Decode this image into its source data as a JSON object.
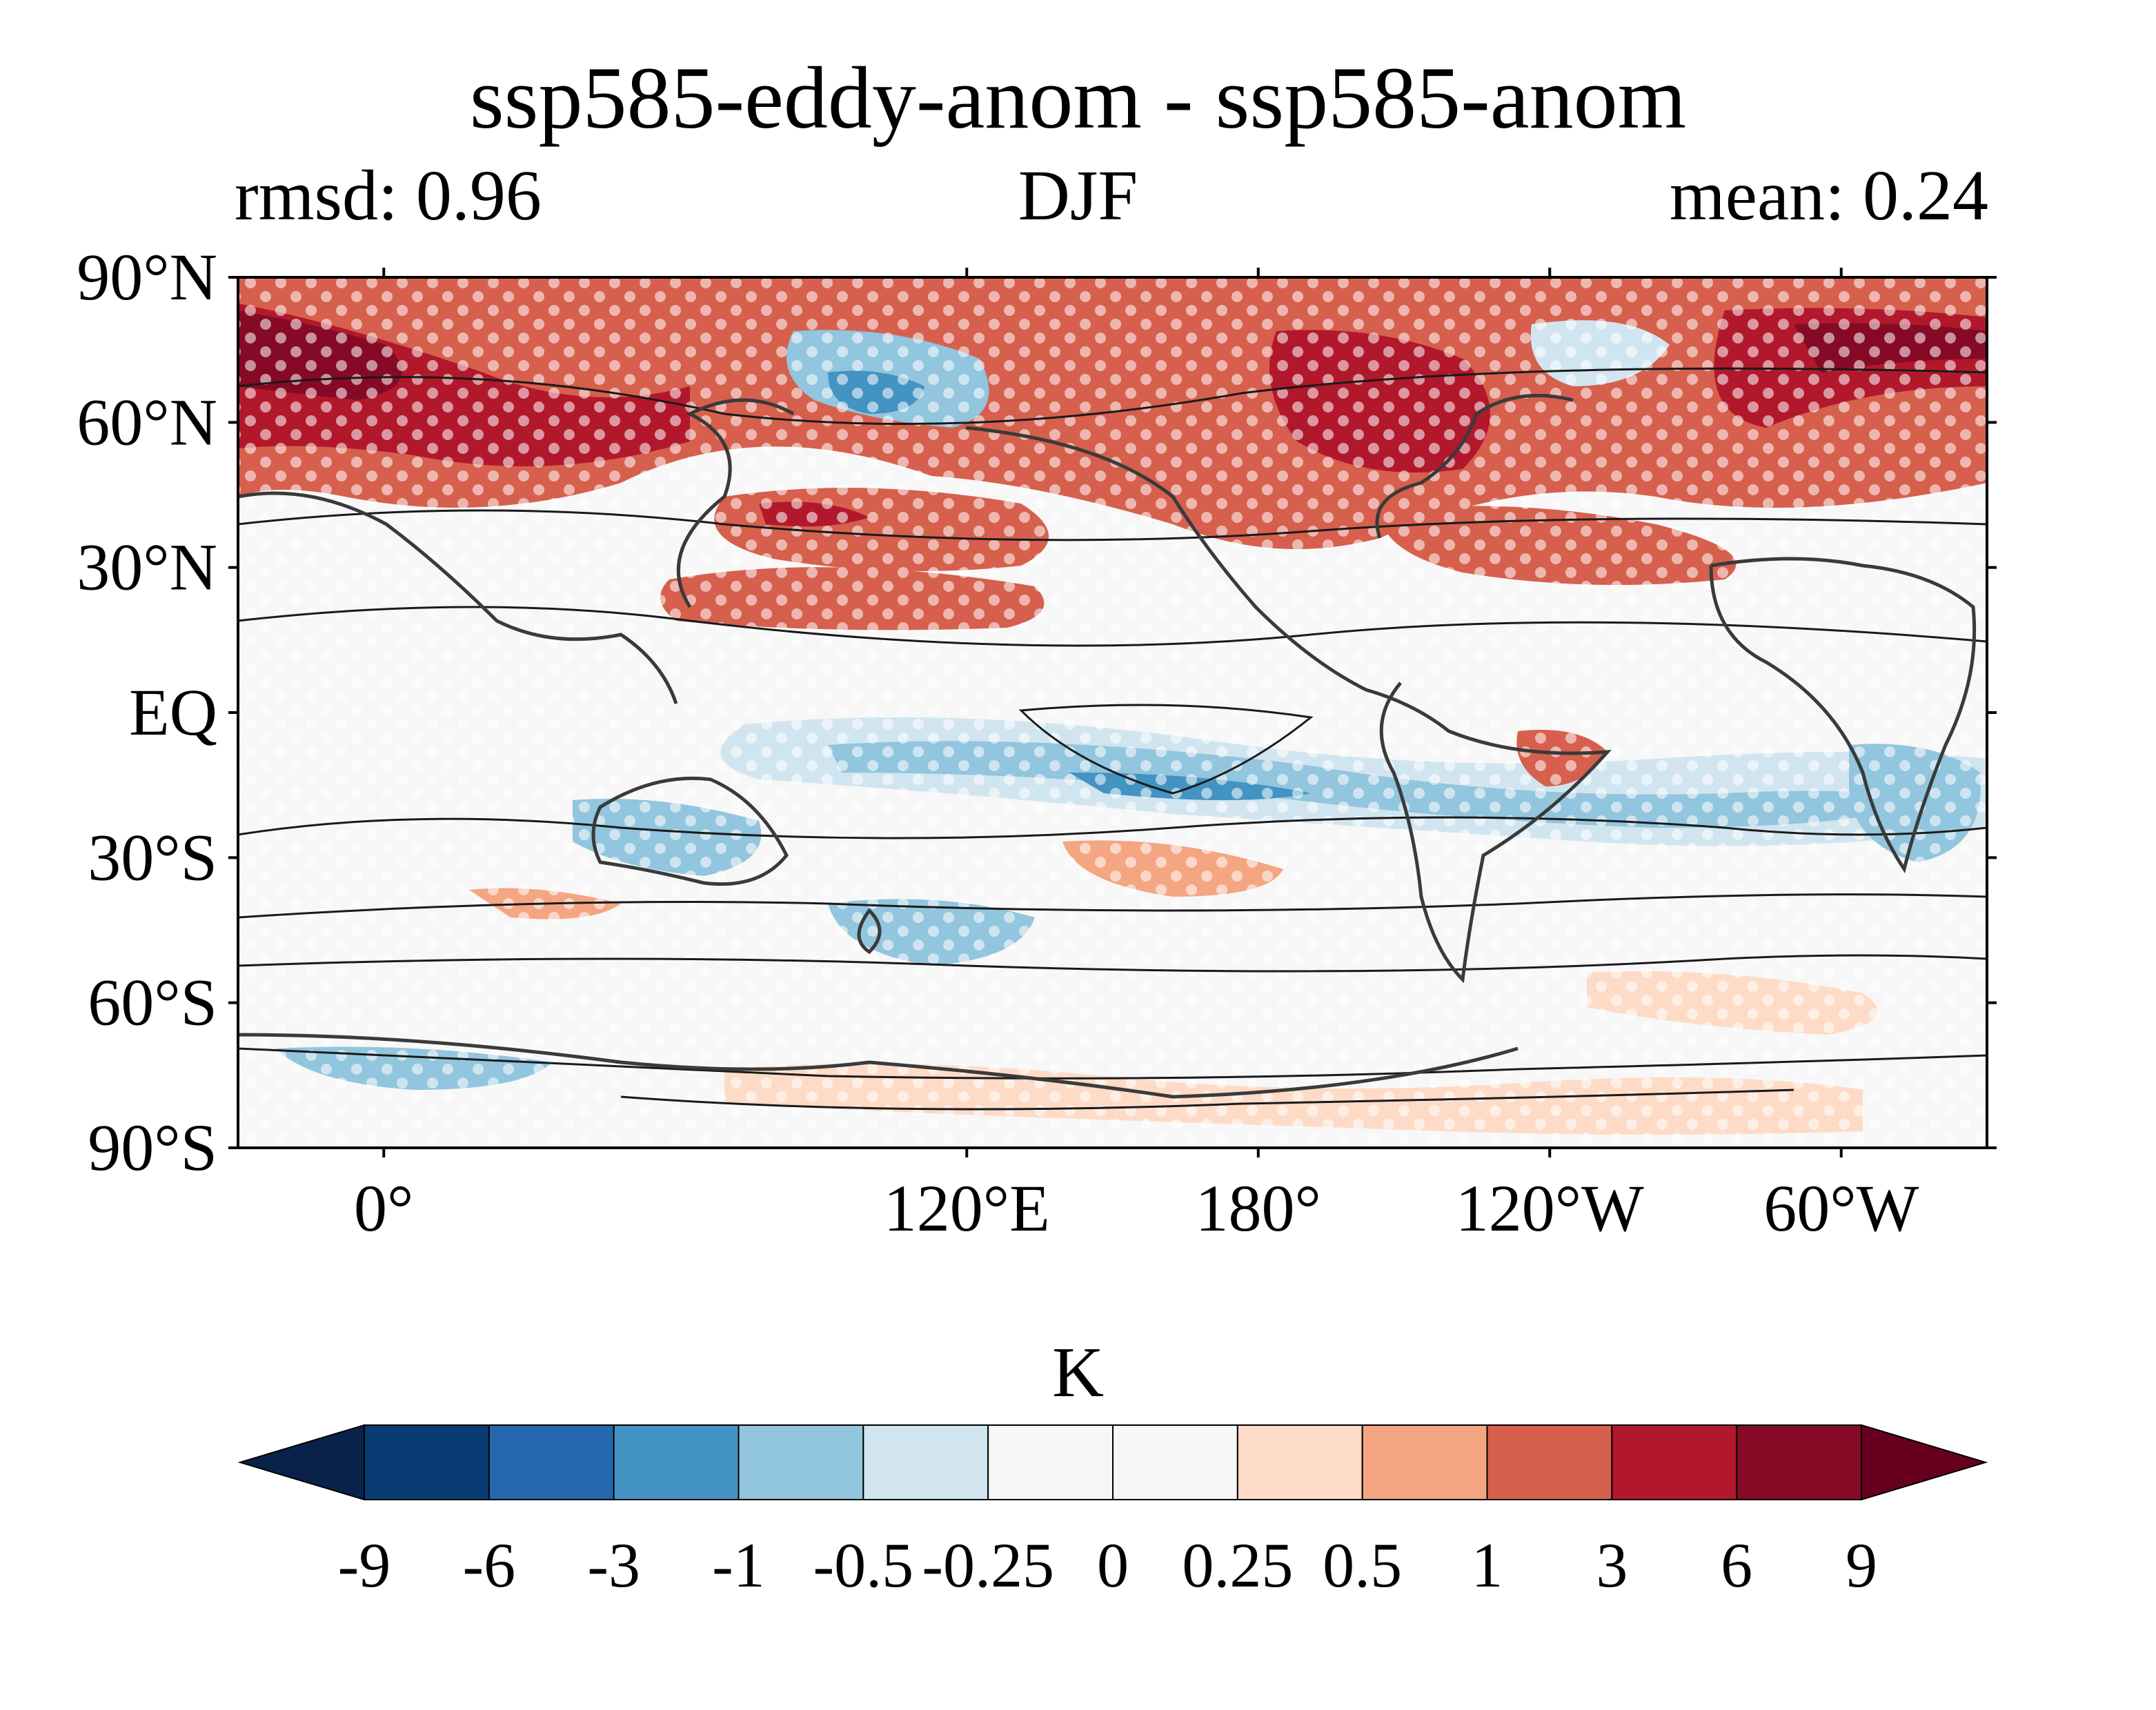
{
  "title": "ssp585-eddy-anom - ssp585-anom",
  "subtitle_left": "rmsd: 0.96",
  "subtitle_center": "DJF",
  "subtitle_right": "mean: 0.24",
  "map": {
    "projection": "PlateCarree",
    "central_longitude": 150,
    "lon_extent": [
      0,
      360
    ],
    "lat_extent": [
      -90,
      90
    ],
    "lat_ticks": [
      {
        "value": 90,
        "label": "90°N"
      },
      {
        "value": 60,
        "label": "60°N"
      },
      {
        "value": 30,
        "label": "30°N"
      },
      {
        "value": 0,
        "label": "EQ"
      },
      {
        "value": -30,
        "label": "30°S"
      },
      {
        "value": -60,
        "label": "60°S"
      },
      {
        "value": -90,
        "label": "90°S"
      }
    ],
    "lon_ticks": [
      {
        "value": 120,
        "label": "120°E"
      },
      {
        "value": 180,
        "label": "180°"
      },
      {
        "value": 240,
        "label": "120°W"
      },
      {
        "value": 300,
        "label": "60°W"
      },
      {
        "value": 360,
        "label": "0°"
      }
    ],
    "stippling": "significance dots (white)",
    "contour_overlay": "black climatology contours and coastlines"
  },
  "colorbar": {
    "label": "K",
    "levels": [
      "-9",
      "-6",
      "-3",
      "-1",
      "-0.5",
      "-0.25",
      "0",
      "0.25",
      "0.5",
      "1",
      "3",
      "6",
      "9"
    ],
    "colors": [
      "#08224a",
      "#0a3a72",
      "#2468ae",
      "#4393c3",
      "#92c5de",
      "#d1e5f0",
      "#f7f7f7",
      "#f7f7f7",
      "#fddbc7",
      "#f4a582",
      "#d6604d",
      "#b2182b",
      "#860a25",
      "#67001f"
    ],
    "extend": "both"
  }
}
